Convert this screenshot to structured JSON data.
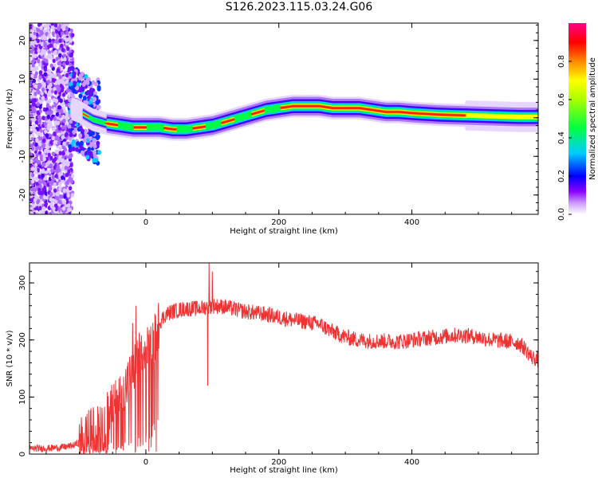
{
  "title": "S126.2023.115.03.24.G06",
  "colors": {
    "snr_line": "#ee3333",
    "colormap": [
      "#ffffff",
      "#8800ff",
      "#0000ff",
      "#00ffff",
      "#00ff00",
      "#ffff00",
      "#ff8800",
      "#ff0000",
      "#ff0088"
    ]
  },
  "chart_data": [
    {
      "type": "heatmap",
      "xlabel": "Height of straight line (km)",
      "ylabel": "Frequency (Hz)",
      "xlim": [
        -175,
        590
      ],
      "ylim": [
        -25,
        24.5
      ],
      "x_ticks": [
        0,
        200,
        400
      ],
      "y_ticks": [
        -20,
        -10,
        0,
        10,
        20
      ],
      "grid": false,
      "colorbar": {
        "label": "Normalized spectral amplitude",
        "range": [
          0,
          1
        ],
        "ticks": [
          "0.0",
          "0.2",
          "0.4",
          "0.6",
          "0.8"
        ],
        "tick_values": [
          0,
          0.2,
          0.4,
          0.6,
          0.8
        ]
      },
      "ridge": {
        "description_points_x": [
          -120,
          -100,
          -80,
          -60,
          -40,
          -20,
          0,
          20,
          40,
          60,
          80,
          100,
          120,
          140,
          160,
          180,
          200,
          220,
          240,
          260,
          280,
          300,
          320,
          340,
          360,
          380,
          400,
          420,
          440,
          460,
          480,
          500,
          520,
          540,
          560,
          590
        ],
        "frequency_hz": [
          3,
          1.5,
          -0.5,
          -1.5,
          -2,
          -2.5,
          -2.5,
          -2.5,
          -3,
          -3,
          -2.5,
          -2,
          -1,
          0,
          1,
          2,
          2.5,
          3,
          3,
          3,
          2.5,
          2.5,
          2.5,
          2,
          1.5,
          1.5,
          1.2,
          1,
          0.8,
          0.7,
          0.6,
          0.5,
          0.4,
          0.3,
          0.2,
          0.2
        ]
      }
    },
    {
      "type": "line",
      "xlabel": "Height of straight line (km)",
      "ylabel": "SNR (10 * v/v)",
      "xlim": [
        -175,
        590
      ],
      "ylim": [
        0,
        335
      ],
      "x_ticks": [
        0,
        200,
        400
      ],
      "y_ticks": [
        0,
        100,
        200,
        300
      ],
      "grid": false,
      "series": [
        {
          "x": [
            -175,
            -150,
            -125,
            -110,
            -100,
            -90,
            -80,
            -70,
            -60,
            -50,
            -40,
            -30,
            -20,
            -15,
            -10,
            0,
            10,
            20,
            30,
            40,
            60,
            80,
            100,
            120,
            140,
            160,
            180,
            200,
            220,
            240,
            260,
            280,
            300,
            320,
            340,
            360,
            380,
            400,
            420,
            440,
            460,
            480,
            500,
            520,
            540,
            560,
            570,
            580,
            590
          ],
          "y": [
            10,
            10,
            12,
            15,
            20,
            30,
            40,
            55,
            65,
            80,
            100,
            120,
            140,
            160,
            170,
            175,
            190,
            230,
            245,
            250,
            255,
            255,
            260,
            258,
            252,
            248,
            245,
            240,
            235,
            232,
            228,
            215,
            205,
            200,
            198,
            198,
            197,
            200,
            203,
            205,
            208,
            208,
            205,
            200,
            198,
            195,
            185,
            170,
            165
          ]
        }
      ],
      "spikes": [
        {
          "x": -20,
          "y": 230
        },
        {
          "x": -15,
          "y": 260
        },
        {
          "x": 93,
          "y": 120
        },
        {
          "x": 95,
          "y": 335
        },
        {
          "x": 100,
          "y": 320
        }
      ]
    }
  ]
}
